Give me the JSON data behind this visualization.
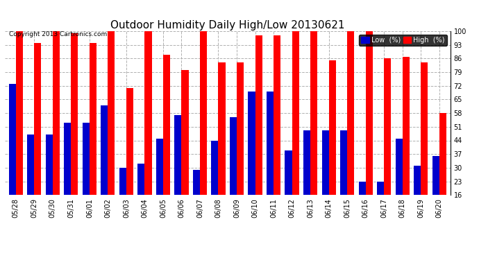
{
  "title": "Outdoor Humidity Daily High/Low 20130621",
  "copyright": "Copyright 2013 Cartronics.com",
  "categories": [
    "05/28",
    "05/29",
    "05/30",
    "05/31",
    "06/01",
    "06/02",
    "06/03",
    "06/04",
    "06/05",
    "06/06",
    "06/07",
    "06/08",
    "06/09",
    "06/10",
    "06/11",
    "06/12",
    "06/13",
    "06/14",
    "06/15",
    "06/16",
    "06/17",
    "06/18",
    "06/19",
    "06/20"
  ],
  "high": [
    100,
    94,
    100,
    99,
    94,
    100,
    71,
    100,
    88,
    80,
    100,
    84,
    84,
    98,
    98,
    100,
    100,
    85,
    100,
    100,
    86,
    87,
    84,
    58
  ],
  "low": [
    73,
    47,
    47,
    53,
    53,
    62,
    30,
    32,
    45,
    57,
    29,
    44,
    56,
    69,
    69,
    39,
    49,
    49,
    49,
    23,
    23,
    45,
    31,
    36
  ],
  "high_color": "#ff0000",
  "low_color": "#0000cc",
  "bg_color": "#ffffff",
  "grid_color": "#b0b0b0",
  "yticks": [
    16,
    23,
    30,
    37,
    44,
    51,
    58,
    65,
    72,
    79,
    86,
    93,
    100
  ],
  "ymin": 16,
  "ymax": 100,
  "bar_width": 0.38,
  "title_fontsize": 11,
  "tick_fontsize": 7,
  "legend_low_label": "Low  (%)",
  "legend_high_label": "High  (%)"
}
